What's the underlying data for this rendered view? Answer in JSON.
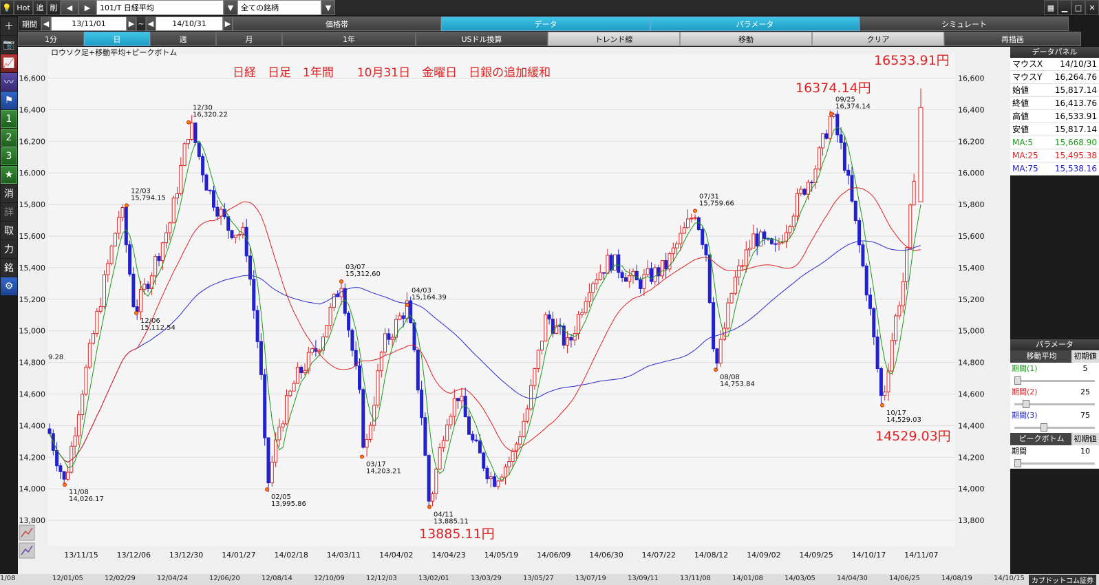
{
  "toolbar": {
    "hot": "Hot",
    "add": "追",
    "del": "削",
    "symbol": "101/T 日経平均",
    "group": "全ての銘柄"
  },
  "row2": {
    "period_label": "期間",
    "from": "13/11/01",
    "tilde": "~",
    "to": "14/10/31",
    "tabs": [
      "価格帯",
      "データ",
      "パラメータ",
      "シミュレート"
    ]
  },
  "row3": {
    "buttons": [
      "1分",
      "日",
      "週",
      "月",
      "1年",
      "USドル換算",
      "トレンド線",
      "移動",
      "クリア",
      "再描画"
    ]
  },
  "sidebar": {
    "items": [
      "消",
      "詳",
      "取",
      "力",
      "銘"
    ],
    "nums": [
      "1",
      "2",
      "3"
    ]
  },
  "chart": {
    "legend": "ロウソク足+移動平均+ピークボトム",
    "title": "日経　日足　1年間　　10月31日　金曜日　日銀の追加緩和",
    "callout_high": "16533.91円",
    "callout_mid": "16374.14円",
    "callout_low": "14529.03円",
    "callout_min": "13885.11円",
    "stub_value": "9.28",
    "y_ticks": [
      "16,600",
      "16,400",
      "16,200",
      "16,000",
      "15,800",
      "15,600",
      "15,400",
      "15,200",
      "15,000",
      "14,800",
      "14,600",
      "14,400",
      "14,200",
      "14,000",
      "13,800"
    ],
    "x_ticks": [
      "13/11/15",
      "13/12/06",
      "13/12/30",
      "14/01/27",
      "14/02/18",
      "14/03/11",
      "14/04/02",
      "14/04/23",
      "14/05/19",
      "14/06/09",
      "14/06/30",
      "14/07/22",
      "14/08/12",
      "14/09/02",
      "14/09/25",
      "14/10/17",
      "14/11/07"
    ],
    "peaks": [
      {
        "date": "11/08",
        "value": "14,026.17"
      },
      {
        "date": "12/03",
        "value": "15,794.15"
      },
      {
        "date": "12/06",
        "value": "15,112.54"
      },
      {
        "date": "12/30",
        "value": "16,320.22"
      },
      {
        "date": "02/05",
        "value": "13,995.86"
      },
      {
        "date": "03/07",
        "value": "15,312.60"
      },
      {
        "date": "03/17",
        "value": "14,203.21"
      },
      {
        "date": "04/03",
        "value": "15,164.39"
      },
      {
        "date": "04/11",
        "value": "13,885.11"
      },
      {
        "date": "07/31",
        "value": "15,759.66"
      },
      {
        "date": "08/08",
        "value": "14,753.84"
      },
      {
        "date": "09/25",
        "value": "16,374.14"
      },
      {
        "date": "10/17",
        "value": "14,529.03"
      }
    ],
    "series_colors": {
      "ma5": "#1a9a1a",
      "ma25": "#d22",
      "ma75": "#22c",
      "up": "#d22",
      "down": "#22c"
    }
  },
  "data_panel": {
    "title": "データパネル",
    "rows": [
      {
        "label": "マウスX",
        "value": "14/10/31"
      },
      {
        "label": "マウスY",
        "value": "16,264.76"
      },
      {
        "label": "始値",
        "value": "15,817.14"
      },
      {
        "label": "終値",
        "value": "16,413.76"
      },
      {
        "label": "高値",
        "value": "16,533.91"
      },
      {
        "label": "安値",
        "value": "15,817.14"
      }
    ],
    "ma_rows": [
      {
        "label": "MA:5",
        "value": "15,668.90"
      },
      {
        "label": "MA:25",
        "value": "15,495.38"
      },
      {
        "label": "MA:75",
        "value": "15,538.16"
      }
    ]
  },
  "param_panel": {
    "title": "パラメータ",
    "ma_header": "移動平均",
    "init": "初期値",
    "p1": "期間(1)",
    "v1": "5",
    "p2": "期間(2)",
    "v2": "25",
    "p3": "期間(3)",
    "v3": "75",
    "pb_header": "ピークボトム",
    "pb_label": "期間",
    "pb_value": "10"
  },
  "bottom_axis": [
    "1/08",
    "12/01/05",
    "12/02/29",
    "12/04/24",
    "12/06/20",
    "12/08/14",
    "12/10/09",
    "12/12/03",
    "13/02/01",
    "13/03/29",
    "13/05/27",
    "13/07/19",
    "13/09/11",
    "13/11/08",
    "14/01/08",
    "14/03/05",
    "14/04/30",
    "14/06/25",
    "14/08/19",
    "14/10/15"
  ],
  "brand": "カブドットコム証券"
}
